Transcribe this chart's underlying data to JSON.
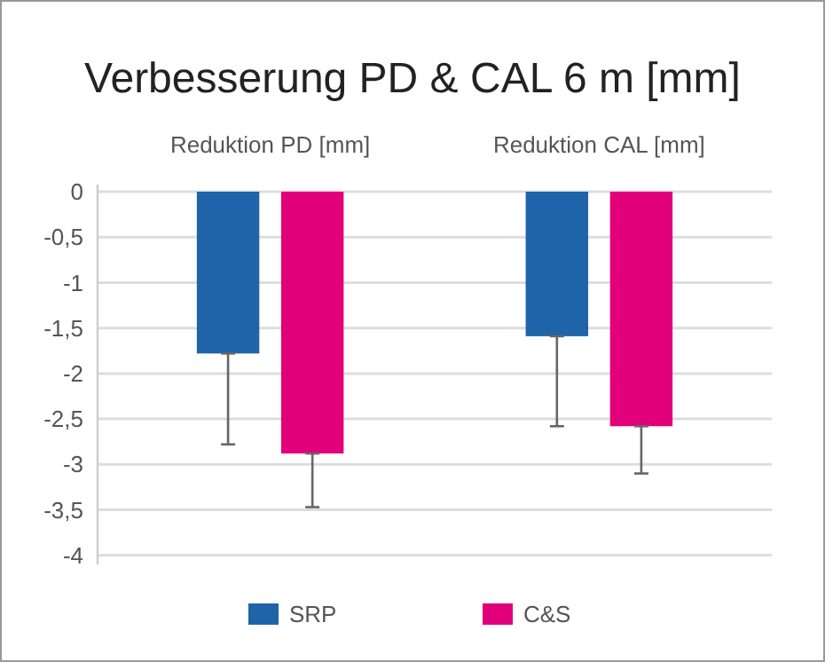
{
  "chart_data": {
    "type": "bar",
    "title": "Verbesserung PD & CAL 6 m [mm]",
    "categories": [
      "Reduktion PD [mm]",
      "Reduktion CAL [mm]"
    ],
    "series": [
      {
        "name": "SRP",
        "color": "#1f64a8",
        "values": [
          -1.78,
          -1.59
        ],
        "errors": [
          [
            -2.78,
            -1.78
          ],
          [
            -2.58,
            -1.59
          ]
        ]
      },
      {
        "name": "C&S",
        "color": "#e2007a",
        "values": [
          -2.88,
          -2.58
        ],
        "errors": [
          [
            -3.47,
            -2.88
          ],
          [
            -3.1,
            -2.58
          ]
        ]
      }
    ],
    "ylim": [
      -4.1,
      0
    ],
    "yticks": [
      {
        "value": 0,
        "label": "0"
      },
      {
        "value": -0.5,
        "label": "-0,5"
      },
      {
        "value": -1,
        "label": "-1"
      },
      {
        "value": -1.5,
        "label": "-1,5"
      },
      {
        "value": -2,
        "label": "-2"
      },
      {
        "value": -2.5,
        "label": "-2,5"
      },
      {
        "value": -3,
        "label": "-3"
      },
      {
        "value": -3.5,
        "label": "-3,5"
      },
      {
        "value": -4,
        "label": "-4"
      }
    ],
    "grid": "y",
    "legend": "bottom"
  }
}
